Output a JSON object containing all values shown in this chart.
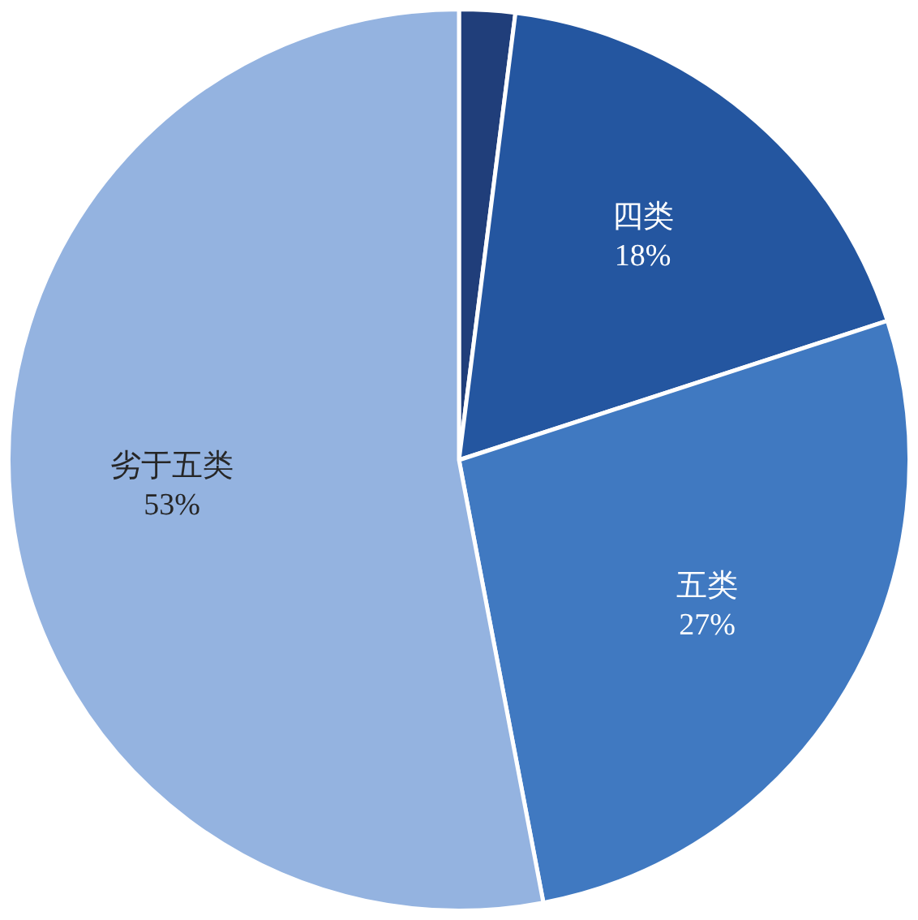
{
  "chart_data": {
    "type": "pie",
    "categories": [
      null,
      "四类",
      "五类",
      "劣于五类"
    ],
    "values": [
      2,
      18,
      27,
      53
    ],
    "colors": [
      "#203e7a",
      "#2456a0",
      "#4079c1",
      "#94b3e0"
    ],
    "value_labels": [
      null,
      "18%",
      "27%",
      "53%"
    ]
  }
}
